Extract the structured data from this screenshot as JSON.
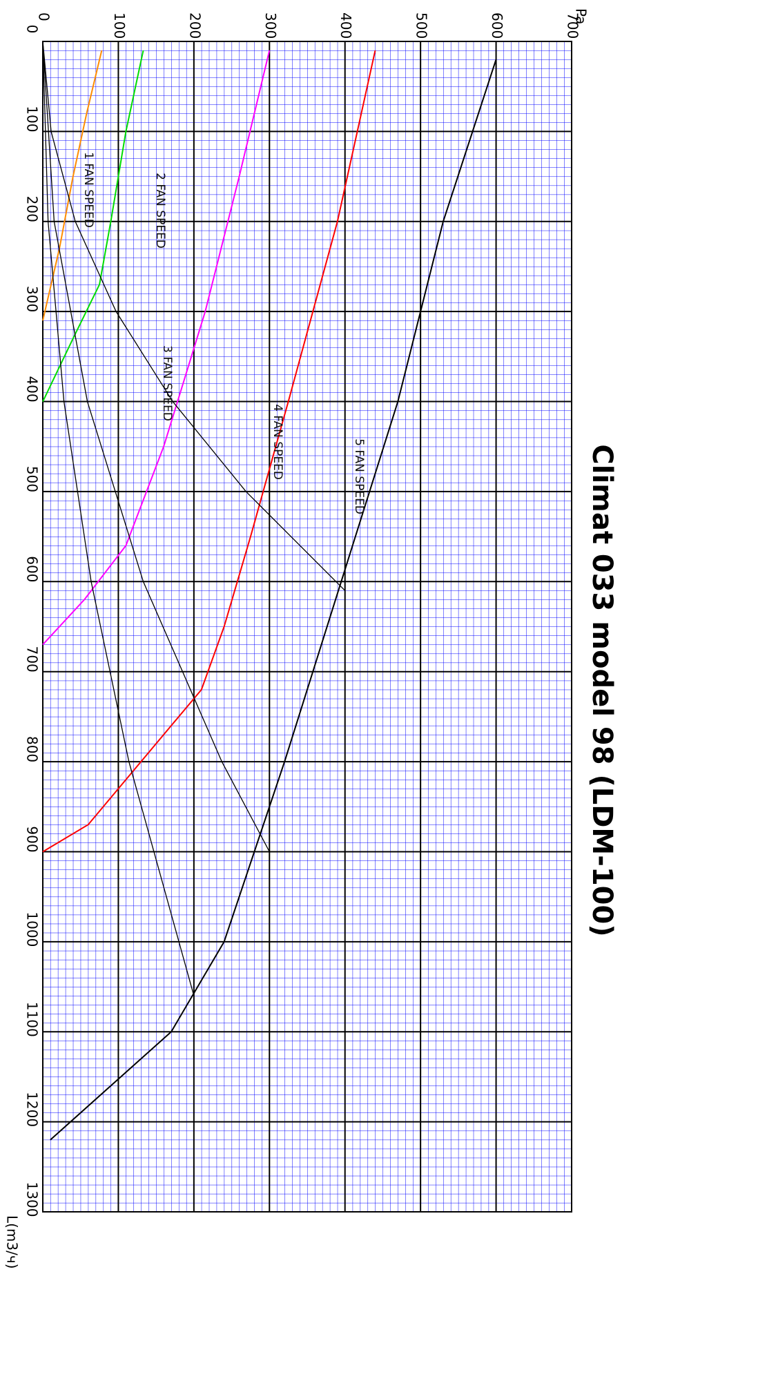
{
  "chart_data": {
    "type": "line",
    "title": "Climat 033 model 98 (LDM-100)",
    "xlabel": "L(m3/ч)",
    "ylabel": "Pa",
    "xlim": [
      0,
      1300
    ],
    "ylim": [
      0,
      700
    ],
    "xticks": [
      0,
      100,
      200,
      300,
      400,
      500,
      600,
      700,
      800,
      900,
      1000,
      1100,
      1200,
      1300
    ],
    "yticks": [
      0,
      100,
      200,
      300,
      400,
      500,
      600,
      700
    ],
    "grid": true,
    "series": [
      {
        "name": "1 FAN SPEED",
        "color": "#ff8c00",
        "x": [
          10,
          80,
          150,
          230,
          310
        ],
        "values": [
          78,
          58,
          40,
          22,
          0
        ]
      },
      {
        "name": "2 FAN SPEED",
        "color": "#00dd00",
        "x": [
          10,
          100,
          200,
          270,
          330,
          400
        ],
        "values": [
          133,
          110,
          90,
          75,
          40,
          0
        ]
      },
      {
        "name": "3 FAN SPEED",
        "color": "#ff00ff",
        "x": [
          10,
          150,
          300,
          450,
          560,
          620,
          670
        ],
        "values": [
          300,
          260,
          215,
          160,
          110,
          55,
          0
        ]
      },
      {
        "name": "4 FAN SPEED",
        "color": "#ff0000",
        "x": [
          10,
          200,
          400,
          550,
          650,
          720,
          820,
          870,
          900
        ],
        "values": [
          440,
          390,
          325,
          275,
          240,
          210,
          110,
          60,
          0
        ]
      },
      {
        "name": "5 FAN SPEED",
        "color": "#000000",
        "x": [
          20,
          200,
          400,
          600,
          800,
          900,
          1000,
          1100,
          1220
        ],
        "values": [
          600,
          530,
          470,
          395,
          320,
          280,
          240,
          170,
          10
        ]
      },
      {
        "color": "#000000",
        "x": [
          0,
          100,
          200,
          300,
          400,
          500,
          610
        ],
        "values": [
          0,
          11,
          43,
          97,
          172,
          269,
          400
        ]
      },
      {
        "color": "#000000",
        "x": [
          0,
          200,
          400,
          600,
          800,
          900
        ],
        "values": [
          0,
          15,
          59,
          133,
          237,
          300
        ]
      },
      {
        "color": "#000000",
        "x": [
          0,
          200,
          400,
          600,
          800,
          1060
        ],
        "values": [
          0,
          7,
          28,
          64,
          114,
          200
        ]
      }
    ]
  }
}
